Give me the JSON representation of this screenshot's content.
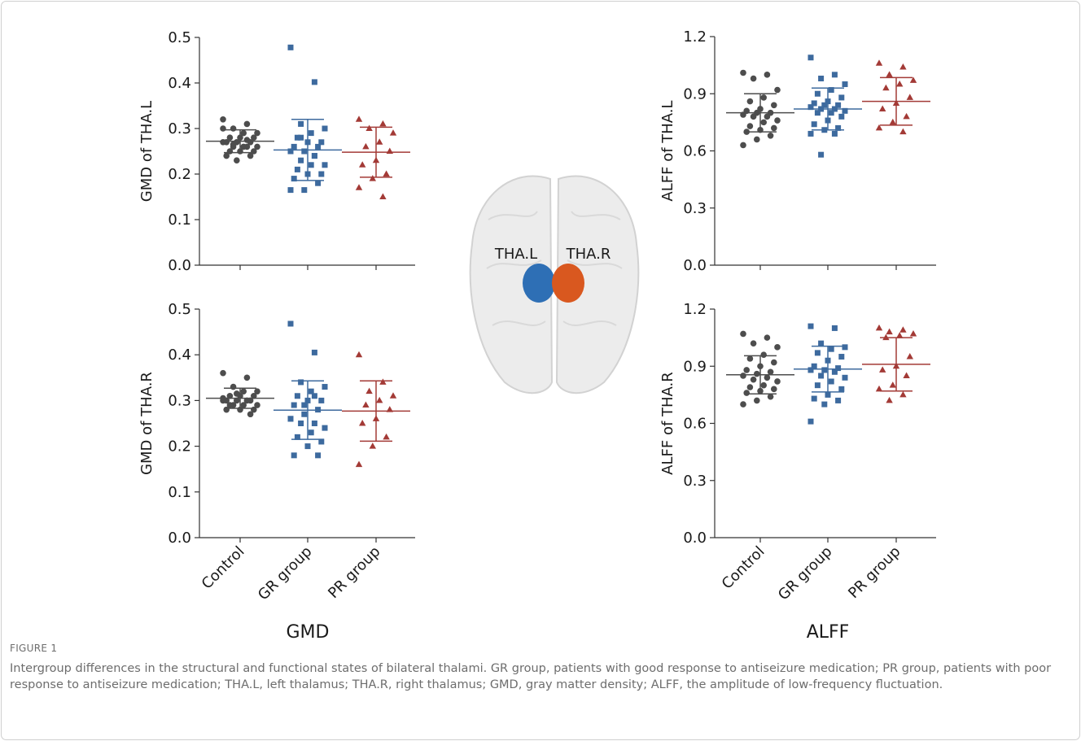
{
  "chart_data": [
    {
      "type": "strip",
      "ylabel": "GMD of THA.L",
      "ylim": [
        0,
        0.5
      ],
      "yticks": [
        {
          "value": 0,
          "label": "0.0"
        },
        0.1,
        0.2,
        0.3,
        0.4,
        0.5
      ],
      "groups": [
        {
          "color": "#4d4d4d",
          "marker": "circle",
          "mean": 0.272,
          "sd": 0.025,
          "values": [
            0.32,
            0.31,
            0.3,
            0.29,
            0.29,
            0.28,
            0.28,
            0.28,
            0.27,
            0.27,
            0.27,
            0.27,
            0.26,
            0.26,
            0.26,
            0.26,
            0.25,
            0.25,
            0.25,
            0.24,
            0.24,
            0.23,
            0.3,
            0.275,
            0.265
          ]
        },
        {
          "color": "#3d6a9e",
          "marker": "square",
          "mean": 0.253,
          "sd": 0.067,
          "values": [
            0.478,
            0.402,
            0.31,
            0.3,
            0.29,
            0.28,
            0.27,
            0.27,
            0.26,
            0.26,
            0.25,
            0.25,
            0.24,
            0.23,
            0.22,
            0.22,
            0.21,
            0.2,
            0.2,
            0.19,
            0.18,
            0.165,
            0.165,
            0.24,
            0.28,
            0.3
          ]
        },
        {
          "color": "#a33a36",
          "marker": "triangle",
          "mean": 0.248,
          "sd": 0.055,
          "values": [
            0.32,
            0.31,
            0.3,
            0.29,
            0.27,
            0.26,
            0.25,
            0.23,
            0.22,
            0.2,
            0.19,
            0.17,
            0.15
          ]
        }
      ]
    },
    {
      "type": "strip",
      "ylabel": "GMD of THA.R",
      "ylim": [
        0,
        0.5
      ],
      "yticks": [
        {
          "value": 0,
          "label": "0.0"
        },
        0.1,
        0.2,
        0.3,
        0.4,
        0.5
      ],
      "categories": [
        "Control",
        "GR group",
        "PR group"
      ],
      "groups": [
        {
          "color": "#4d4d4d",
          "marker": "circle",
          "mean": 0.305,
          "sd": 0.022,
          "values": [
            0.36,
            0.35,
            0.33,
            0.32,
            0.32,
            0.31,
            0.31,
            0.31,
            0.3,
            0.3,
            0.3,
            0.3,
            0.3,
            0.29,
            0.29,
            0.29,
            0.29,
            0.28,
            0.28,
            0.28,
            0.27,
            0.315,
            0.305
          ]
        },
        {
          "color": "#3d6a9e",
          "marker": "square",
          "mean": 0.279,
          "sd": 0.064,
          "values": [
            0.468,
            0.405,
            0.34,
            0.33,
            0.32,
            0.31,
            0.3,
            0.3,
            0.29,
            0.28,
            0.27,
            0.26,
            0.25,
            0.25,
            0.24,
            0.23,
            0.22,
            0.21,
            0.2,
            0.18,
            0.18,
            0.29,
            0.26,
            0.31
          ]
        },
        {
          "color": "#a33a36",
          "marker": "triangle",
          "mean": 0.277,
          "sd": 0.066,
          "values": [
            0.4,
            0.34,
            0.32,
            0.31,
            0.3,
            0.29,
            0.28,
            0.26,
            0.25,
            0.22,
            0.2,
            0.16
          ]
        }
      ]
    },
    {
      "type": "strip",
      "ylabel": "ALFF of THA.L",
      "ylim": [
        0,
        1.2
      ],
      "yticks": [
        {
          "value": 0,
          "label": "0.0"
        },
        0.3,
        0.6,
        0.9,
        1.2
      ],
      "groups": [
        {
          "color": "#4d4d4d",
          "marker": "circle",
          "mean": 0.8,
          "sd": 0.1,
          "values": [
            1.01,
            1.0,
            0.98,
            0.92,
            0.88,
            0.86,
            0.84,
            0.82,
            0.81,
            0.8,
            0.8,
            0.79,
            0.78,
            0.78,
            0.76,
            0.75,
            0.73,
            0.72,
            0.71,
            0.7,
            0.68,
            0.66,
            0.63
          ]
        },
        {
          "color": "#3d6a9e",
          "marker": "square",
          "mean": 0.82,
          "sd": 0.11,
          "values": [
            1.09,
            1.0,
            0.98,
            0.95,
            0.92,
            0.9,
            0.88,
            0.86,
            0.85,
            0.84,
            0.84,
            0.83,
            0.82,
            0.82,
            0.81,
            0.8,
            0.8,
            0.78,
            0.76,
            0.74,
            0.72,
            0.71,
            0.69,
            0.69,
            0.58
          ]
        },
        {
          "color": "#a33a36",
          "marker": "triangle",
          "mean": 0.86,
          "sd": 0.125,
          "values": [
            1.06,
            1.04,
            1.0,
            0.97,
            0.95,
            0.93,
            0.88,
            0.85,
            0.82,
            0.78,
            0.75,
            0.72,
            0.7
          ]
        }
      ]
    },
    {
      "type": "strip",
      "ylabel": "ALFF of THA.R",
      "ylim": [
        0,
        1.2
      ],
      "yticks": [
        {
          "value": 0,
          "label": "0.0"
        },
        0.3,
        0.6,
        0.9,
        1.2
      ],
      "categories": [
        "Control",
        "GR group",
        "PR group"
      ],
      "groups": [
        {
          "color": "#4d4d4d",
          "marker": "circle",
          "mean": 0.855,
          "sd": 0.1,
          "values": [
            1.07,
            1.05,
            1.02,
            1.0,
            0.96,
            0.94,
            0.92,
            0.9,
            0.88,
            0.87,
            0.86,
            0.85,
            0.84,
            0.83,
            0.82,
            0.8,
            0.79,
            0.78,
            0.77,
            0.76,
            0.74,
            0.72,
            0.7
          ]
        },
        {
          "color": "#3d6a9e",
          "marker": "square",
          "mean": 0.885,
          "sd": 0.12,
          "values": [
            1.11,
            1.1,
            1.02,
            1.0,
            0.99,
            0.97,
            0.95,
            0.93,
            0.9,
            0.89,
            0.88,
            0.88,
            0.87,
            0.85,
            0.84,
            0.82,
            0.8,
            0.78,
            0.75,
            0.73,
            0.72,
            0.7,
            0.61
          ]
        },
        {
          "color": "#a33a36",
          "marker": "triangle",
          "mean": 0.91,
          "sd": 0.14,
          "values": [
            1.1,
            1.09,
            1.08,
            1.07,
            1.06,
            1.05,
            0.95,
            0.9,
            0.88,
            0.85,
            0.8,
            0.78,
            0.75,
            0.72
          ]
        }
      ]
    }
  ],
  "column_titles": [
    "GMD",
    "ALFF"
  ],
  "brain": {
    "left_label": "THA.L",
    "right_label": "THA.R"
  },
  "figure": {
    "label": "FIGURE 1",
    "caption": "Intergroup differences in the structural and functional states of bilateral thalami. GR group, patients with good response to antiseizure medication; PR group, patients with poor response to antiseizure medication; THA.L, left thalamus; THA.R, right thalamus; GMD, gray matter density; ALFF, the amplitude of low-frequency fluctuation."
  }
}
